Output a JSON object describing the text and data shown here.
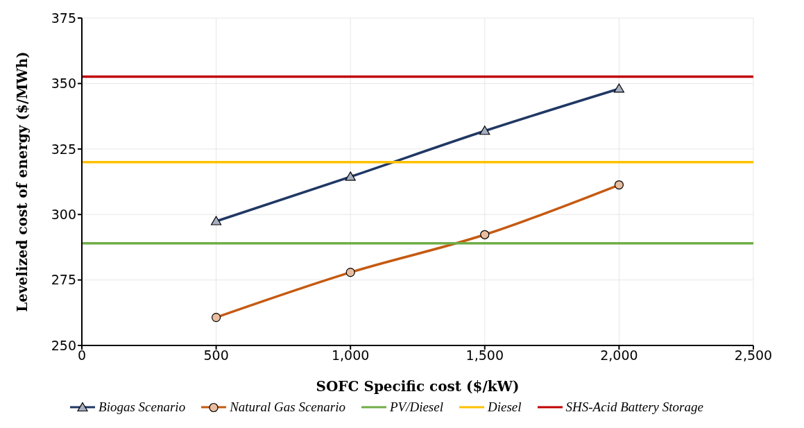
{
  "chart_data": {
    "type": "line",
    "xlabel": "SOFC Specific cost ($/kW)",
    "ylabel": "Levelized cost of energy ($/MWh)",
    "xlim": [
      0,
      2500
    ],
    "xticks": [
      0,
      500,
      {
        "value": 1000,
        "label": "1,000"
      },
      {
        "value": 1500,
        "label": "1,500"
      },
      {
        "value": 2000,
        "label": "2,000"
      },
      {
        "value": 2500,
        "label": "2,500"
      }
    ],
    "ylim": [
      250,
      375
    ],
    "yticks": [
      250,
      275,
      300,
      325,
      350,
      375
    ],
    "grid": true,
    "legend": "bottom",
    "line_style": "solid",
    "series": [
      {
        "name": "Biogas Scenario",
        "color": "#203864",
        "marker": "triangle",
        "x": [
          500,
          1000,
          1500,
          2000
        ],
        "values": [
          297.4,
          314.4,
          331.9,
          348
        ]
      },
      {
        "name": "Natural Gas Scenario",
        "color": "#c55a11",
        "marker": "circle",
        "x": [
          500,
          1000,
          1500,
          2000
        ],
        "values": [
          260.7,
          277.9,
          292.3,
          311.3
        ]
      },
      {
        "name": "PV/Diesel",
        "color": "#70ad47",
        "marker": "none",
        "x": [
          0,
          2500
        ],
        "values": [
          289,
          289
        ]
      },
      {
        "name": "Diesel",
        "color": "#ffc000",
        "marker": "none",
        "x": [
          0,
          2500
        ],
        "values": [
          320,
          320
        ]
      },
      {
        "name": "SHS-Acid Battery Storage",
        "color": "#c00000",
        "marker": "none",
        "x": [
          0,
          2500
        ],
        "values": [
          352.6,
          352.6
        ]
      }
    ]
  }
}
